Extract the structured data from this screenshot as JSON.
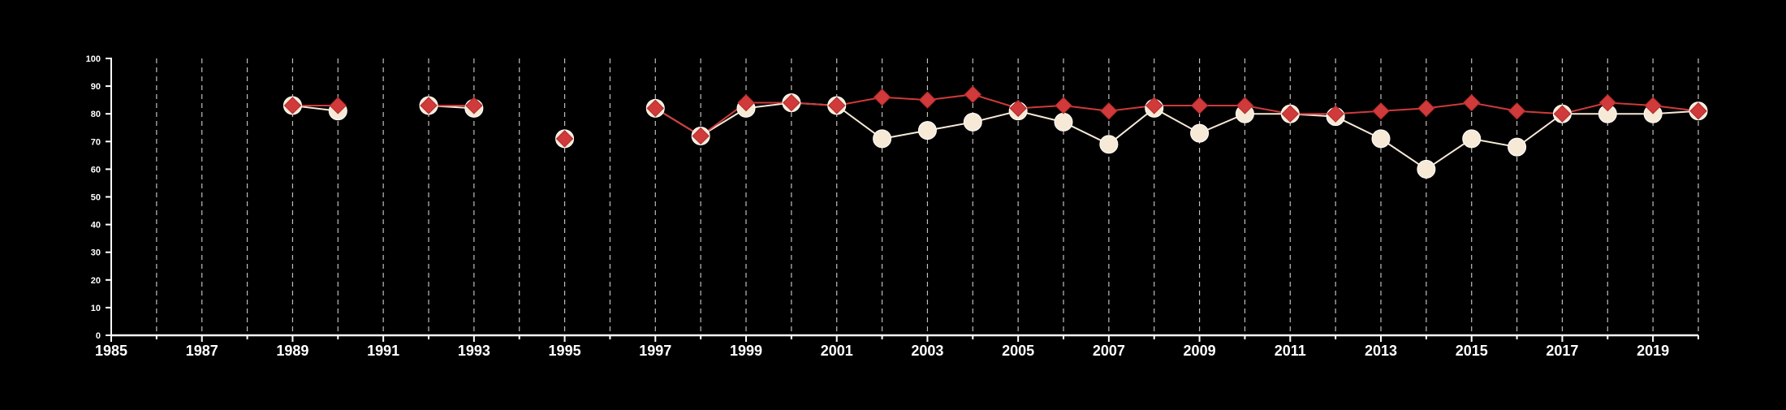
{
  "colors": {
    "background": "#000000",
    "axis": "#ffffff",
    "grid": "#bfbfbf",
    "series_a": "#f6e9d6",
    "series_b": "#d03a3a"
  },
  "chart_data": {
    "type": "line",
    "title": "",
    "xlabel": "",
    "ylabel": "",
    "xlim": [
      1985,
      2020
    ],
    "ylim": [
      0,
      100
    ],
    "x_ticks": [
      1985,
      1987,
      1989,
      1991,
      1993,
      1995,
      1997,
      1999,
      2001,
      2003,
      2005,
      2007,
      2009,
      2011,
      2013,
      2015,
      2017,
      2019
    ],
    "y_ticks": [
      0,
      10,
      20,
      30,
      40,
      50,
      60,
      70,
      80,
      90,
      100
    ],
    "x_gridlines": "every year, dashed vertical",
    "legend": "none",
    "series": [
      {
        "marker": "circle",
        "color": "#f6e9d6",
        "points": [
          [
            1989,
            83
          ],
          [
            1990,
            81
          ],
          [
            1992,
            83
          ],
          [
            1993,
            82
          ],
          [
            1995,
            71
          ],
          [
            1997,
            82
          ],
          [
            1998,
            72
          ],
          [
            1999,
            82
          ],
          [
            2000,
            84
          ],
          [
            2001,
            83
          ],
          [
            2002,
            71
          ],
          [
            2003,
            74
          ],
          [
            2004,
            77
          ],
          [
            2005,
            81
          ],
          [
            2006,
            77
          ],
          [
            2007,
            69
          ],
          [
            2008,
            82
          ],
          [
            2009,
            73
          ],
          [
            2010,
            80
          ],
          [
            2011,
            80
          ],
          [
            2012,
            79
          ],
          [
            2013,
            71
          ],
          [
            2014,
            60
          ],
          [
            2015,
            71
          ],
          [
            2016,
            68
          ],
          [
            2017,
            80
          ],
          [
            2018,
            80
          ],
          [
            2019,
            80
          ],
          [
            2020,
            81
          ]
        ]
      },
      {
        "marker": "diamond",
        "color": "#d03a3a",
        "points": [
          [
            1989,
            83
          ],
          [
            1990,
            83
          ],
          [
            1992,
            83
          ],
          [
            1993,
            83
          ],
          [
            1995,
            71
          ],
          [
            1997,
            82
          ],
          [
            1998,
            72
          ],
          [
            1999,
            84
          ],
          [
            2000,
            84
          ],
          [
            2001,
            83
          ],
          [
            2002,
            86
          ],
          [
            2003,
            85
          ],
          [
            2004,
            87
          ],
          [
            2005,
            82
          ],
          [
            2006,
            83
          ],
          [
            2007,
            81
          ],
          [
            2008,
            83
          ],
          [
            2009,
            83
          ],
          [
            2010,
            83
          ],
          [
            2011,
            80
          ],
          [
            2012,
            80
          ],
          [
            2013,
            81
          ],
          [
            2014,
            82
          ],
          [
            2015,
            84
          ],
          [
            2016,
            81
          ],
          [
            2017,
            80
          ],
          [
            2018,
            84
          ],
          [
            2019,
            83
          ],
          [
            2020,
            81
          ]
        ]
      }
    ]
  }
}
